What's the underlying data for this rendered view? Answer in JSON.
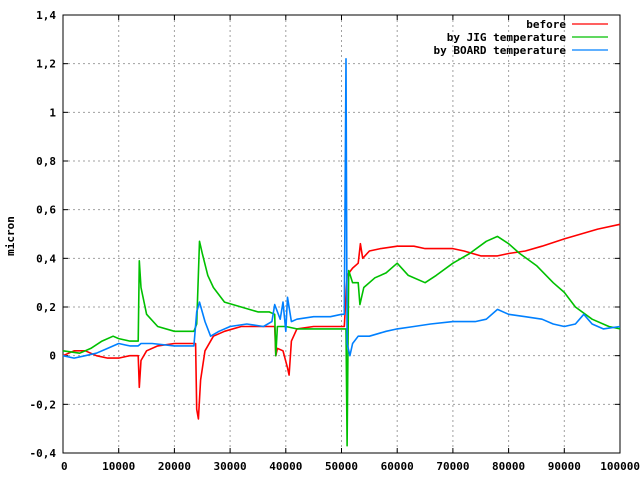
{
  "chart_data": {
    "type": "line",
    "ylabel": "micron",
    "xlim": [
      0,
      100000
    ],
    "ylim": [
      -0.4,
      1.4
    ],
    "xticks": [
      0,
      10000,
      20000,
      30000,
      40000,
      50000,
      60000,
      70000,
      80000,
      90000,
      100000
    ],
    "xtick_labels": [
      "0",
      "10000",
      "20000",
      "30000",
      "40000",
      "50000",
      "60000",
      "70000",
      "80000",
      "90000",
      "100000"
    ],
    "yticks": [
      -0.4,
      -0.2,
      0,
      0.2,
      0.4,
      0.6,
      0.8,
      1,
      1.2,
      1.4
    ],
    "ytick_labels": [
      "-0,4",
      "-0,2",
      "0",
      "0,2",
      "0,4",
      "0,6",
      "0,8",
      "1",
      "1,2",
      "1,4"
    ],
    "grid": true,
    "legend_position": "top-right",
    "series": [
      {
        "name": "before",
        "color": "#ff0000",
        "points": [
          [
            0,
            0.0
          ],
          [
            2000,
            0.02
          ],
          [
            4000,
            0.02
          ],
          [
            6000,
            0.0
          ],
          [
            8000,
            -0.01
          ],
          [
            10000,
            -0.01
          ],
          [
            12000,
            0.0
          ],
          [
            13500,
            0.0
          ],
          [
            13700,
            -0.13
          ],
          [
            14000,
            -0.02
          ],
          [
            15000,
            0.02
          ],
          [
            17000,
            0.04
          ],
          [
            20000,
            0.05
          ],
          [
            23000,
            0.05
          ],
          [
            23800,
            0.05
          ],
          [
            24000,
            -0.22
          ],
          [
            24300,
            -0.26
          ],
          [
            24700,
            -0.1
          ],
          [
            25500,
            0.02
          ],
          [
            27000,
            0.08
          ],
          [
            29000,
            0.1
          ],
          [
            32000,
            0.12
          ],
          [
            35000,
            0.12
          ],
          [
            38000,
            0.12
          ],
          [
            38200,
            0.0
          ],
          [
            38500,
            0.03
          ],
          [
            39500,
            0.02
          ],
          [
            40300,
            -0.05
          ],
          [
            40600,
            -0.08
          ],
          [
            41000,
            0.06
          ],
          [
            42000,
            0.11
          ],
          [
            45000,
            0.12
          ],
          [
            48000,
            0.12
          ],
          [
            50500,
            0.12
          ],
          [
            51000,
            0.33
          ],
          [
            52000,
            0.36
          ],
          [
            53000,
            0.38
          ],
          [
            53400,
            0.46
          ],
          [
            53800,
            0.4
          ],
          [
            55000,
            0.43
          ],
          [
            57000,
            0.44
          ],
          [
            60000,
            0.45
          ],
          [
            63000,
            0.45
          ],
          [
            65000,
            0.44
          ],
          [
            70000,
            0.44
          ],
          [
            72000,
            0.43
          ],
          [
            75000,
            0.41
          ],
          [
            78000,
            0.41
          ],
          [
            80000,
            0.42
          ],
          [
            83000,
            0.43
          ],
          [
            86000,
            0.45
          ],
          [
            90000,
            0.48
          ],
          [
            93000,
            0.5
          ],
          [
            96000,
            0.52
          ],
          [
            100000,
            0.54
          ]
        ]
      },
      {
        "name": "by JIG temperature",
        "color": "#00c000",
        "points": [
          [
            0,
            0.02
          ],
          [
            3000,
            0.01
          ],
          [
            5000,
            0.03
          ],
          [
            7000,
            0.06
          ],
          [
            9000,
            0.08
          ],
          [
            10000,
            0.07
          ],
          [
            12000,
            0.06
          ],
          [
            13500,
            0.06
          ],
          [
            13700,
            0.39
          ],
          [
            14000,
            0.28
          ],
          [
            15000,
            0.17
          ],
          [
            17000,
            0.12
          ],
          [
            20000,
            0.1
          ],
          [
            23500,
            0.1
          ],
          [
            24000,
            0.13
          ],
          [
            24500,
            0.47
          ],
          [
            25000,
            0.42
          ],
          [
            26000,
            0.33
          ],
          [
            27000,
            0.28
          ],
          [
            29000,
            0.22
          ],
          [
            32000,
            0.2
          ],
          [
            35000,
            0.18
          ],
          [
            37000,
            0.18
          ],
          [
            38000,
            0.17
          ],
          [
            38200,
            0.0
          ],
          [
            38500,
            0.12
          ],
          [
            40000,
            0.12
          ],
          [
            42000,
            0.11
          ],
          [
            46000,
            0.11
          ],
          [
            50000,
            0.11
          ],
          [
            50800,
            0.11
          ],
          [
            51000,
            -0.37
          ],
          [
            51300,
            0.35
          ],
          [
            52000,
            0.3
          ],
          [
            53000,
            0.3
          ],
          [
            53300,
            0.21
          ],
          [
            54000,
            0.28
          ],
          [
            56000,
            0.32
          ],
          [
            58000,
            0.34
          ],
          [
            60000,
            0.38
          ],
          [
            62000,
            0.33
          ],
          [
            65000,
            0.3
          ],
          [
            67000,
            0.33
          ],
          [
            70000,
            0.38
          ],
          [
            73000,
            0.42
          ],
          [
            76000,
            0.47
          ],
          [
            78000,
            0.49
          ],
          [
            80000,
            0.46
          ],
          [
            82000,
            0.42
          ],
          [
            85000,
            0.37
          ],
          [
            88000,
            0.3
          ],
          [
            90000,
            0.26
          ],
          [
            92000,
            0.2
          ],
          [
            95000,
            0.15
          ],
          [
            98000,
            0.12
          ],
          [
            100000,
            0.11
          ]
        ]
      },
      {
        "name": "by BOARD temperature",
        "color": "#0080ff",
        "points": [
          [
            0,
            0.0
          ],
          [
            2000,
            -0.01
          ],
          [
            4000,
            0.0
          ],
          [
            6000,
            0.01
          ],
          [
            8000,
            0.03
          ],
          [
            10000,
            0.05
          ],
          [
            12000,
            0.04
          ],
          [
            13500,
            0.04
          ],
          [
            14000,
            0.05
          ],
          [
            16000,
            0.05
          ],
          [
            20000,
            0.04
          ],
          [
            23500,
            0.04
          ],
          [
            24000,
            0.18
          ],
          [
            24500,
            0.22
          ],
          [
            25500,
            0.14
          ],
          [
            26500,
            0.08
          ],
          [
            28000,
            0.1
          ],
          [
            30000,
            0.12
          ],
          [
            33000,
            0.13
          ],
          [
            36000,
            0.12
          ],
          [
            37500,
            0.14
          ],
          [
            38000,
            0.21
          ],
          [
            39000,
            0.15
          ],
          [
            39500,
            0.22
          ],
          [
            40000,
            0.1
          ],
          [
            40300,
            0.24
          ],
          [
            41000,
            0.14
          ],
          [
            42000,
            0.15
          ],
          [
            45000,
            0.16
          ],
          [
            48000,
            0.16
          ],
          [
            50000,
            0.17
          ],
          [
            50500,
            0.17
          ],
          [
            50800,
            1.22
          ],
          [
            51000,
            0.05
          ],
          [
            51500,
            0.0
          ],
          [
            52000,
            0.05
          ],
          [
            53000,
            0.08
          ],
          [
            55000,
            0.08
          ],
          [
            58000,
            0.1
          ],
          [
            60000,
            0.11
          ],
          [
            63000,
            0.12
          ],
          [
            66000,
            0.13
          ],
          [
            70000,
            0.14
          ],
          [
            74000,
            0.14
          ],
          [
            76000,
            0.15
          ],
          [
            78000,
            0.19
          ],
          [
            80000,
            0.17
          ],
          [
            83000,
            0.16
          ],
          [
            86000,
            0.15
          ],
          [
            88000,
            0.13
          ],
          [
            90000,
            0.12
          ],
          [
            92000,
            0.13
          ],
          [
            93500,
            0.17
          ],
          [
            95000,
            0.13
          ],
          [
            97000,
            0.11
          ],
          [
            100000,
            0.12
          ]
        ]
      }
    ]
  }
}
